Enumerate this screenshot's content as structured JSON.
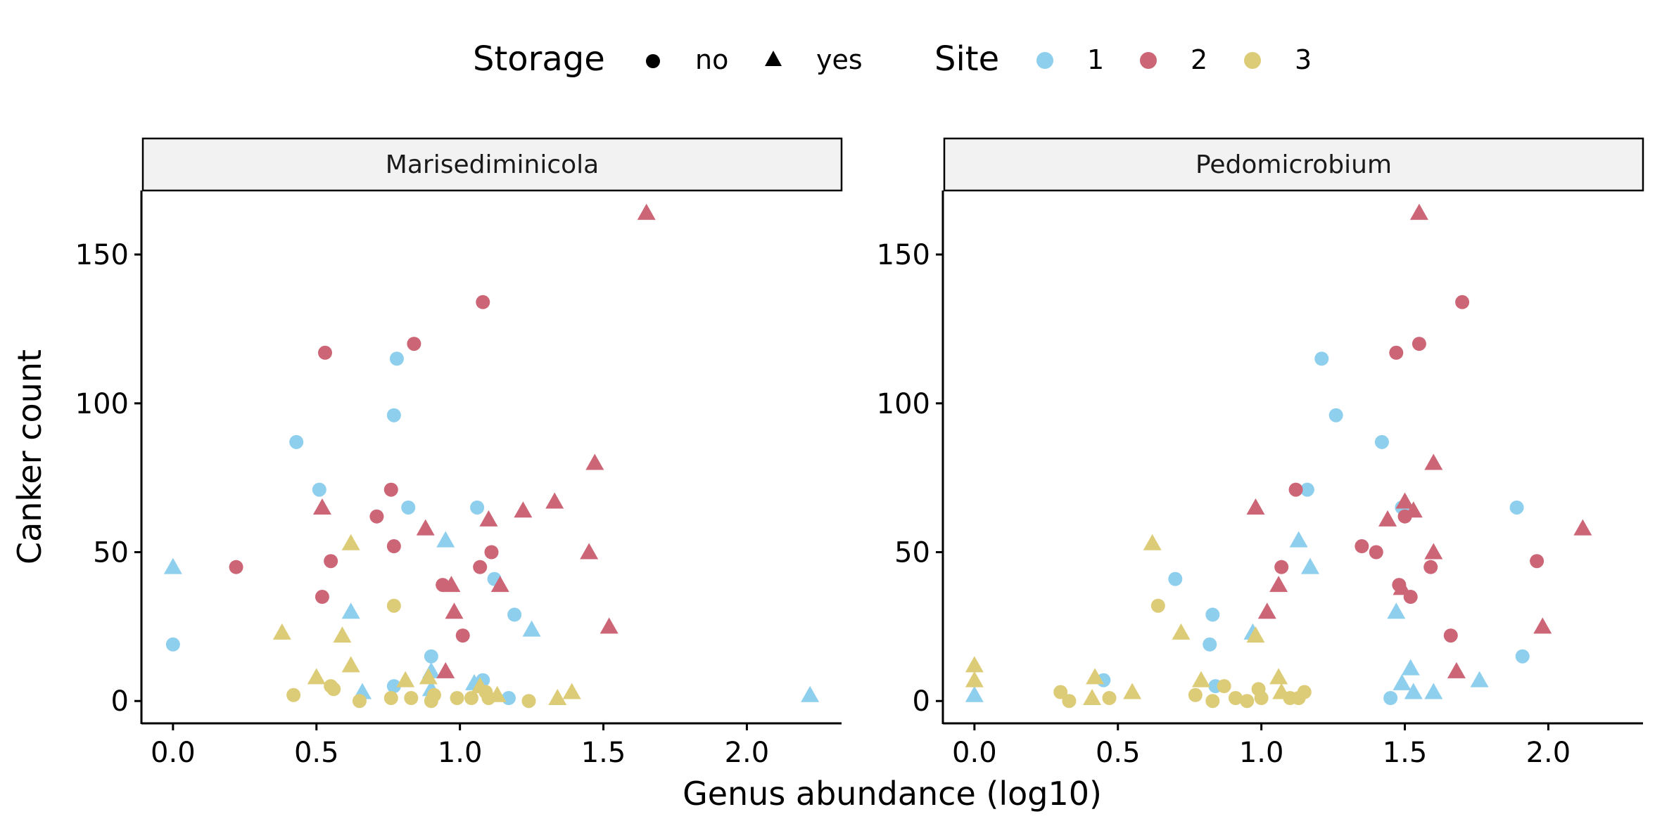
{
  "legend": {
    "storage_title": "Storage",
    "storage_items": [
      {
        "label": "no",
        "shape": "circle"
      },
      {
        "label": "yes",
        "shape": "triangle"
      }
    ],
    "site_title": "Site",
    "site_items": [
      {
        "label": "1",
        "color": "#8ECFEE"
      },
      {
        "label": "2",
        "color": "#CC6677"
      },
      {
        "label": "3",
        "color": "#DDCC77"
      }
    ]
  },
  "axes": {
    "xlabel": "Genus abundance (log10)",
    "ylabel": "Canker count",
    "x_ticks": [
      "0.0",
      "0.5",
      "1.0",
      "1.5",
      "2.0"
    ],
    "y_ticks": [
      "0",
      "50",
      "100",
      "150"
    ]
  },
  "chart_data": [
    {
      "type": "scatter",
      "panel_title": "Marisediminicola",
      "xlim": [
        -0.11,
        2.33
      ],
      "ylim": [
        -7.5,
        171.5
      ],
      "grid": false,
      "points": [
        {
          "x": 0.0,
          "y": 45,
          "site": "1",
          "storage": "yes"
        },
        {
          "x": 0.0,
          "y": 19,
          "site": "1",
          "storage": "no"
        },
        {
          "x": 0.43,
          "y": 87,
          "site": "1",
          "storage": "no"
        },
        {
          "x": 0.51,
          "y": 71,
          "site": "1",
          "storage": "no"
        },
        {
          "x": 0.78,
          "y": 115,
          "site": "1",
          "storage": "no"
        },
        {
          "x": 0.77,
          "y": 96,
          "site": "1",
          "storage": "no"
        },
        {
          "x": 0.82,
          "y": 65,
          "site": "1",
          "storage": "no"
        },
        {
          "x": 1.06,
          "y": 65,
          "site": "1",
          "storage": "no"
        },
        {
          "x": 0.95,
          "y": 54,
          "site": "1",
          "storage": "yes"
        },
        {
          "x": 1.12,
          "y": 41,
          "site": "1",
          "storage": "no"
        },
        {
          "x": 0.62,
          "y": 30,
          "site": "1",
          "storage": "yes"
        },
        {
          "x": 1.19,
          "y": 29,
          "site": "1",
          "storage": "no"
        },
        {
          "x": 1.25,
          "y": 24,
          "site": "1",
          "storage": "yes"
        },
        {
          "x": 0.9,
          "y": 15,
          "site": "1",
          "storage": "no"
        },
        {
          "x": 0.9,
          "y": 10,
          "site": "1",
          "storage": "yes"
        },
        {
          "x": 1.08,
          "y": 7,
          "site": "1",
          "storage": "no"
        },
        {
          "x": 1.05,
          "y": 6,
          "site": "1",
          "storage": "yes"
        },
        {
          "x": 0.77,
          "y": 5,
          "site": "1",
          "storage": "no"
        },
        {
          "x": 0.66,
          "y": 3,
          "site": "1",
          "storage": "yes"
        },
        {
          "x": 0.9,
          "y": 4,
          "site": "1",
          "storage": "yes"
        },
        {
          "x": 1.17,
          "y": 1,
          "site": "1",
          "storage": "no"
        },
        {
          "x": 2.22,
          "y": 2,
          "site": "1",
          "storage": "yes"
        },
        {
          "x": 0.22,
          "y": 45,
          "site": "2",
          "storage": "no"
        },
        {
          "x": 0.53,
          "y": 117,
          "site": "2",
          "storage": "no"
        },
        {
          "x": 0.84,
          "y": 120,
          "site": "2",
          "storage": "no"
        },
        {
          "x": 1.08,
          "y": 134,
          "site": "2",
          "storage": "no"
        },
        {
          "x": 1.65,
          "y": 164,
          "site": "2",
          "storage": "yes"
        },
        {
          "x": 0.76,
          "y": 71,
          "site": "2",
          "storage": "no"
        },
        {
          "x": 0.52,
          "y": 65,
          "site": "2",
          "storage": "yes"
        },
        {
          "x": 0.71,
          "y": 62,
          "site": "2",
          "storage": "no"
        },
        {
          "x": 0.88,
          "y": 58,
          "site": "2",
          "storage": "yes"
        },
        {
          "x": 0.77,
          "y": 52,
          "site": "2",
          "storage": "no"
        },
        {
          "x": 0.55,
          "y": 47,
          "site": "2",
          "storage": "no"
        },
        {
          "x": 1.1,
          "y": 61,
          "site": "2",
          "storage": "yes"
        },
        {
          "x": 1.22,
          "y": 64,
          "site": "2",
          "storage": "yes"
        },
        {
          "x": 1.33,
          "y": 67,
          "site": "2",
          "storage": "yes"
        },
        {
          "x": 1.47,
          "y": 80,
          "site": "2",
          "storage": "yes"
        },
        {
          "x": 1.45,
          "y": 50,
          "site": "2",
          "storage": "yes"
        },
        {
          "x": 1.11,
          "y": 50,
          "site": "2",
          "storage": "no"
        },
        {
          "x": 1.07,
          "y": 45,
          "site": "2",
          "storage": "no"
        },
        {
          "x": 0.94,
          "y": 39,
          "site": "2",
          "storage": "no"
        },
        {
          "x": 0.97,
          "y": 39,
          "site": "2",
          "storage": "yes"
        },
        {
          "x": 1.14,
          "y": 39,
          "site": "2",
          "storage": "yes"
        },
        {
          "x": 0.52,
          "y": 35,
          "site": "2",
          "storage": "no"
        },
        {
          "x": 0.98,
          "y": 30,
          "site": "2",
          "storage": "yes"
        },
        {
          "x": 1.52,
          "y": 25,
          "site": "2",
          "storage": "yes"
        },
        {
          "x": 1.01,
          "y": 22,
          "site": "2",
          "storage": "no"
        },
        {
          "x": 0.95,
          "y": 10,
          "site": "2",
          "storage": "yes"
        },
        {
          "x": 0.62,
          "y": 53,
          "site": "3",
          "storage": "yes"
        },
        {
          "x": 0.77,
          "y": 32,
          "site": "3",
          "storage": "no"
        },
        {
          "x": 0.38,
          "y": 23,
          "site": "3",
          "storage": "yes"
        },
        {
          "x": 0.59,
          "y": 22,
          "site": "3",
          "storage": "yes"
        },
        {
          "x": 0.62,
          "y": 12,
          "site": "3",
          "storage": "yes"
        },
        {
          "x": 0.5,
          "y": 8,
          "site": "3",
          "storage": "yes"
        },
        {
          "x": 0.89,
          "y": 8,
          "site": "3",
          "storage": "yes"
        },
        {
          "x": 0.81,
          "y": 7,
          "site": "3",
          "storage": "yes"
        },
        {
          "x": 0.55,
          "y": 5,
          "site": "3",
          "storage": "no"
        },
        {
          "x": 0.56,
          "y": 4,
          "site": "3",
          "storage": "no"
        },
        {
          "x": 0.42,
          "y": 2,
          "site": "3",
          "storage": "no"
        },
        {
          "x": 0.76,
          "y": 1,
          "site": "3",
          "storage": "no"
        },
        {
          "x": 0.83,
          "y": 1,
          "site": "3",
          "storage": "no"
        },
        {
          "x": 0.9,
          "y": 0,
          "site": "3",
          "storage": "no"
        },
        {
          "x": 0.91,
          "y": 2,
          "site": "3",
          "storage": "no"
        },
        {
          "x": 0.65,
          "y": 0,
          "site": "3",
          "storage": "no"
        },
        {
          "x": 0.99,
          "y": 1,
          "site": "3",
          "storage": "no"
        },
        {
          "x": 1.04,
          "y": 1,
          "site": "3",
          "storage": "no"
        },
        {
          "x": 1.09,
          "y": 3,
          "site": "3",
          "storage": "no"
        },
        {
          "x": 1.1,
          "y": 1,
          "site": "3",
          "storage": "no"
        },
        {
          "x": 1.13,
          "y": 2,
          "site": "3",
          "storage": "yes"
        },
        {
          "x": 1.07,
          "y": 5,
          "site": "3",
          "storage": "yes"
        },
        {
          "x": 1.24,
          "y": 0,
          "site": "3",
          "storage": "no"
        },
        {
          "x": 1.34,
          "y": 1,
          "site": "3",
          "storage": "yes"
        },
        {
          "x": 1.39,
          "y": 3,
          "site": "3",
          "storage": "yes"
        }
      ]
    },
    {
      "type": "scatter",
      "panel_title": "Pedomicrobium",
      "xlim": [
        -0.11,
        2.33
      ],
      "ylim": [
        -7.5,
        171.5
      ],
      "grid": false,
      "points": [
        {
          "x": 0.0,
          "y": 2,
          "site": "1",
          "storage": "yes"
        },
        {
          "x": 0.45,
          "y": 7,
          "site": "1",
          "storage": "no"
        },
        {
          "x": 0.7,
          "y": 41,
          "site": "1",
          "storage": "no"
        },
        {
          "x": 0.83,
          "y": 29,
          "site": "1",
          "storage": "no"
        },
        {
          "x": 0.82,
          "y": 19,
          "site": "1",
          "storage": "no"
        },
        {
          "x": 0.84,
          "y": 5,
          "site": "1",
          "storage": "no"
        },
        {
          "x": 0.97,
          "y": 23,
          "site": "1",
          "storage": "yes"
        },
        {
          "x": 1.13,
          "y": 54,
          "site": "1",
          "storage": "yes"
        },
        {
          "x": 1.16,
          "y": 71,
          "site": "1",
          "storage": "no"
        },
        {
          "x": 1.17,
          "y": 45,
          "site": "1",
          "storage": "yes"
        },
        {
          "x": 1.21,
          "y": 115,
          "site": "1",
          "storage": "no"
        },
        {
          "x": 1.26,
          "y": 96,
          "site": "1",
          "storage": "no"
        },
        {
          "x": 1.42,
          "y": 87,
          "site": "1",
          "storage": "no"
        },
        {
          "x": 1.49,
          "y": 65,
          "site": "1",
          "storage": "no"
        },
        {
          "x": 1.47,
          "y": 30,
          "site": "1",
          "storage": "yes"
        },
        {
          "x": 1.52,
          "y": 11,
          "site": "1",
          "storage": "yes"
        },
        {
          "x": 1.49,
          "y": 6,
          "site": "1",
          "storage": "yes"
        },
        {
          "x": 1.45,
          "y": 1,
          "site": "1",
          "storage": "no"
        },
        {
          "x": 1.53,
          "y": 3,
          "site": "1",
          "storage": "yes"
        },
        {
          "x": 1.6,
          "y": 3,
          "site": "1",
          "storage": "yes"
        },
        {
          "x": 1.76,
          "y": 7,
          "site": "1",
          "storage": "yes"
        },
        {
          "x": 1.89,
          "y": 65,
          "site": "1",
          "storage": "no"
        },
        {
          "x": 1.91,
          "y": 15,
          "site": "1",
          "storage": "no"
        },
        {
          "x": 0.98,
          "y": 65,
          "site": "2",
          "storage": "yes"
        },
        {
          "x": 1.12,
          "y": 71,
          "site": "2",
          "storage": "no"
        },
        {
          "x": 1.07,
          "y": 45,
          "site": "2",
          "storage": "no"
        },
        {
          "x": 1.06,
          "y": 39,
          "site": "2",
          "storage": "yes"
        },
        {
          "x": 1.02,
          "y": 30,
          "site": "2",
          "storage": "yes"
        },
        {
          "x": 1.35,
          "y": 52,
          "site": "2",
          "storage": "no"
        },
        {
          "x": 1.4,
          "y": 50,
          "site": "2",
          "storage": "no"
        },
        {
          "x": 1.44,
          "y": 61,
          "site": "2",
          "storage": "yes"
        },
        {
          "x": 1.47,
          "y": 117,
          "site": "2",
          "storage": "no"
        },
        {
          "x": 1.55,
          "y": 120,
          "site": "2",
          "storage": "no"
        },
        {
          "x": 1.55,
          "y": 164,
          "site": "2",
          "storage": "yes"
        },
        {
          "x": 1.5,
          "y": 67,
          "site": "2",
          "storage": "yes"
        },
        {
          "x": 1.5,
          "y": 62,
          "site": "2",
          "storage": "no"
        },
        {
          "x": 1.53,
          "y": 64,
          "site": "2",
          "storage": "yes"
        },
        {
          "x": 1.6,
          "y": 80,
          "site": "2",
          "storage": "yes"
        },
        {
          "x": 1.6,
          "y": 50,
          "site": "2",
          "storage": "yes"
        },
        {
          "x": 1.59,
          "y": 45,
          "site": "2",
          "storage": "no"
        },
        {
          "x": 1.48,
          "y": 39,
          "site": "2",
          "storage": "no"
        },
        {
          "x": 1.49,
          "y": 38,
          "site": "2",
          "storage": "yes"
        },
        {
          "x": 1.52,
          "y": 35,
          "site": "2",
          "storage": "no"
        },
        {
          "x": 1.66,
          "y": 22,
          "site": "2",
          "storage": "no"
        },
        {
          "x": 1.68,
          "y": 10,
          "site": "2",
          "storage": "yes"
        },
        {
          "x": 1.7,
          "y": 134,
          "site": "2",
          "storage": "no"
        },
        {
          "x": 1.96,
          "y": 47,
          "site": "2",
          "storage": "no"
        },
        {
          "x": 1.98,
          "y": 25,
          "site": "2",
          "storage": "yes"
        },
        {
          "x": 2.12,
          "y": 58,
          "site": "2",
          "storage": "yes"
        },
        {
          "x": 0.0,
          "y": 12,
          "site": "3",
          "storage": "yes"
        },
        {
          "x": 0.0,
          "y": 7,
          "site": "3",
          "storage": "yes"
        },
        {
          "x": 0.3,
          "y": 3,
          "site": "3",
          "storage": "no"
        },
        {
          "x": 0.33,
          "y": 0,
          "site": "3",
          "storage": "no"
        },
        {
          "x": 0.42,
          "y": 8,
          "site": "3",
          "storage": "yes"
        },
        {
          "x": 0.41,
          "y": 1,
          "site": "3",
          "storage": "yes"
        },
        {
          "x": 0.47,
          "y": 1,
          "site": "3",
          "storage": "no"
        },
        {
          "x": 0.55,
          "y": 3,
          "site": "3",
          "storage": "yes"
        },
        {
          "x": 0.62,
          "y": 53,
          "site": "3",
          "storage": "yes"
        },
        {
          "x": 0.64,
          "y": 32,
          "site": "3",
          "storage": "no"
        },
        {
          "x": 0.72,
          "y": 23,
          "site": "3",
          "storage": "yes"
        },
        {
          "x": 0.77,
          "y": 2,
          "site": "3",
          "storage": "no"
        },
        {
          "x": 0.79,
          "y": 7,
          "site": "3",
          "storage": "yes"
        },
        {
          "x": 0.83,
          "y": 0,
          "site": "3",
          "storage": "no"
        },
        {
          "x": 0.87,
          "y": 5,
          "site": "3",
          "storage": "no"
        },
        {
          "x": 0.91,
          "y": 1,
          "site": "3",
          "storage": "no"
        },
        {
          "x": 0.95,
          "y": 0,
          "site": "3",
          "storage": "no"
        },
        {
          "x": 0.98,
          "y": 22,
          "site": "3",
          "storage": "yes"
        },
        {
          "x": 0.99,
          "y": 4,
          "site": "3",
          "storage": "no"
        },
        {
          "x": 1.0,
          "y": 1,
          "site": "3",
          "storage": "no"
        },
        {
          "x": 1.06,
          "y": 8,
          "site": "3",
          "storage": "yes"
        },
        {
          "x": 1.07,
          "y": 3,
          "site": "3",
          "storage": "yes"
        },
        {
          "x": 1.1,
          "y": 1,
          "site": "3",
          "storage": "no"
        },
        {
          "x": 1.13,
          "y": 1,
          "site": "3",
          "storage": "no"
        },
        {
          "x": 1.15,
          "y": 3,
          "site": "3",
          "storage": "no"
        }
      ]
    }
  ]
}
